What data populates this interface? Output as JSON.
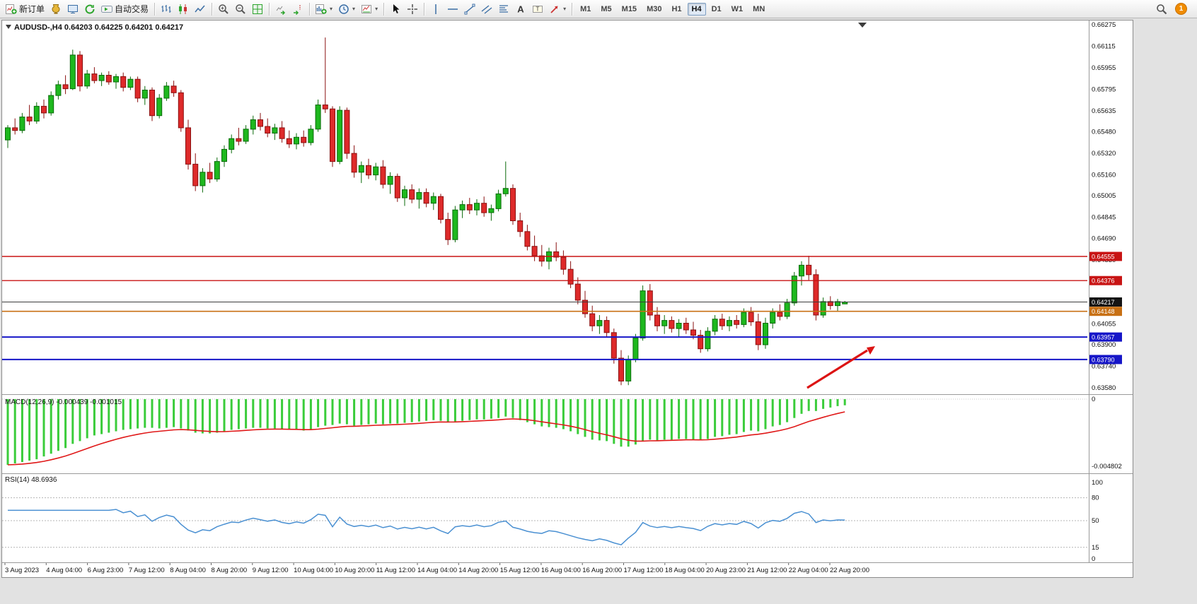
{
  "toolbar": {
    "notification_count": "1",
    "groups": [
      {
        "items": [
          {
            "name": "new-order-button",
            "icon": "new-order-icon",
            "label": "新订单"
          },
          {
            "name": "metaeditor-button",
            "icon": "metaeditor-icon"
          },
          {
            "name": "terminal-button",
            "icon": "terminal-icon"
          },
          {
            "name": "connection-button",
            "icon": "connection-icon"
          },
          {
            "name": "autotrading-button",
            "icon": "autotrading-icon",
            "label": "自动交易"
          }
        ]
      },
      {
        "items": [
          {
            "name": "bar-chart-button",
            "icon": "bar-chart-icon"
          },
          {
            "name": "candlestick-chart-button",
            "icon": "candlestick-chart-icon"
          },
          {
            "name": "line-chart-button",
            "icon": "line-chart-icon"
          }
        ]
      },
      {
        "items": [
          {
            "name": "zoom-in-button",
            "icon": "zoom-in-icon"
          },
          {
            "name": "zoom-out-button",
            "icon": "zoom-out-icon"
          },
          {
            "name": "tile-windows-button",
            "icon": "tile-windows-icon"
          }
        ]
      },
      {
        "items": [
          {
            "name": "auto-scroll-button",
            "icon": "auto-scroll-icon"
          },
          {
            "name": "chart-shift-button",
            "icon": "chart-shift-icon"
          }
        ]
      },
      {
        "items": [
          {
            "name": "indicators-button",
            "icon": "indicators-icon",
            "dropdown": true
          },
          {
            "name": "periods-button",
            "icon": "clock-icon",
            "dropdown": true
          },
          {
            "name": "templates-button",
            "icon": "template-icon",
            "dropdown": true
          }
        ]
      },
      {
        "items": [
          {
            "name": "cursor-button",
            "icon": "cursor-icon"
          },
          {
            "name": "crosshair-button",
            "icon": "crosshair-icon"
          }
        ]
      },
      {
        "items": [
          {
            "name": "vertical-line-button",
            "icon": "vertical-line-icon"
          },
          {
            "name": "horizontal-line-button",
            "icon": "horizontal-line-icon"
          },
          {
            "name": "trendline-button",
            "icon": "trendline-icon"
          },
          {
            "name": "channel-button",
            "icon": "channel-icon"
          },
          {
            "name": "fibonacci-button",
            "icon": "fibonacci-icon"
          },
          {
            "name": "text-button",
            "icon": "text-icon"
          },
          {
            "name": "text-label-button",
            "icon": "text-label-icon"
          },
          {
            "name": "arrows-button",
            "icon": "arrows-icon",
            "dropdown": true
          }
        ]
      }
    ],
    "periods": [
      {
        "label": "M1"
      },
      {
        "label": "M5"
      },
      {
        "label": "M15"
      },
      {
        "label": "M30"
      },
      {
        "label": "H1"
      },
      {
        "label": "H4",
        "active": true
      },
      {
        "label": "D1"
      },
      {
        "label": "W1"
      },
      {
        "label": "MN"
      }
    ]
  },
  "chart": {
    "title": "AUDUSD-,H4 0.64203 0.64225 0.64201 0.64217",
    "symbol": "AUDUSD-",
    "timeframe": "H4",
    "ohlc": {
      "open": "0.64203",
      "high": "0.64225",
      "low": "0.64201",
      "close": "0.64217"
    }
  },
  "indicators": {
    "macd_label": "MACD(12,26,9) -0.000439 -0.001015",
    "rsi_label": "RSI(14) 48.6936"
  },
  "price_axis": {
    "labels": [
      "0.66275",
      "0.66115",
      "0.65955",
      "0.65795",
      "0.65635",
      "0.65480",
      "0.65320",
      "0.65160",
      "0.65005",
      "0.64845",
      "0.64690",
      "0.64530",
      "0.64055",
      "0.63900",
      "0.63740",
      "0.63580"
    ],
    "badges": [
      {
        "value": "0.64555",
        "color": "#C81414"
      },
      {
        "value": "0.64376",
        "color": "#C81414"
      },
      {
        "value": "0.64217",
        "color": "#141414"
      },
      {
        "value": "0.64148",
        "color": "#C87014"
      },
      {
        "value": "0.63957",
        "color": "#1616C8"
      },
      {
        "value": "0.63790",
        "color": "#1616C8"
      }
    ]
  },
  "macd_axis": {
    "labels": [
      "0",
      "-0.004802"
    ]
  },
  "rsi_axis": {
    "labels": [
      "100",
      "80",
      "50",
      "15",
      "0"
    ],
    "levels": [
      80,
      50,
      15
    ]
  },
  "time_axis": {
    "labels": [
      "3 Aug 2023",
      "4 Aug 04:00",
      "6 Aug 23:00",
      "7 Aug 12:00",
      "8 Aug 04:00",
      "8 Aug 20:00",
      "9 Aug 12:00",
      "10 Aug 04:00",
      "10 Aug 20:00",
      "11 Aug 12:00",
      "14 Aug 04:00",
      "14 Aug 20:00",
      "15 Aug 12:00",
      "16 Aug 04:00",
      "16 Aug 20:00",
      "17 Aug 12:00",
      "18 Aug 04:00",
      "20 Aug 23:00",
      "21 Aug 12:00",
      "22 Aug 04:00",
      "22 Aug 20:00"
    ]
  },
  "colors": {
    "bull": "#1EB81E",
    "bull_dark": "#0B6B0B",
    "bear": "#DE2A2A",
    "bear_dark": "#8A1010",
    "macd_histogram": "#3ACC3A",
    "macd_signal": "#E01818",
    "rsi_line": "#4A90D2",
    "red_line": "#C81414",
    "blue_line": "#1616C8",
    "orange_line": "#C87014",
    "current_price": "#3C3C3C",
    "arrow": "#DC1414"
  },
  "chart_data": {
    "type": "candlestick",
    "symbol": "AUDUSD-",
    "timeframe": "H4",
    "ylim": [
      0.6358,
      0.66275
    ],
    "candles": [
      [
        0.6542,
        0.6553,
        0.6536,
        0.6551
      ],
      [
        0.6551,
        0.6558,
        0.6546,
        0.6549
      ],
      [
        0.6549,
        0.6562,
        0.6547,
        0.6559
      ],
      [
        0.6559,
        0.6568,
        0.6553,
        0.6556
      ],
      [
        0.6556,
        0.657,
        0.6554,
        0.6567
      ],
      [
        0.6567,
        0.6572,
        0.6558,
        0.6562
      ],
      [
        0.6562,
        0.6578,
        0.656,
        0.6575
      ],
      [
        0.6575,
        0.6586,
        0.6572,
        0.6583
      ],
      [
        0.6583,
        0.659,
        0.6576,
        0.658
      ],
      [
        0.658,
        0.6609,
        0.6579,
        0.6605
      ],
      [
        0.6605,
        0.6608,
        0.6578,
        0.6582
      ],
      [
        0.6582,
        0.6594,
        0.658,
        0.6591
      ],
      [
        0.6591,
        0.6596,
        0.6584,
        0.6586
      ],
      [
        0.6586,
        0.6592,
        0.6582,
        0.659
      ],
      [
        0.659,
        0.6593,
        0.6583,
        0.6585
      ],
      [
        0.6585,
        0.6591,
        0.658,
        0.6589
      ],
      [
        0.6589,
        0.6592,
        0.6578,
        0.6581
      ],
      [
        0.6581,
        0.6589,
        0.6579,
        0.6587
      ],
      [
        0.6587,
        0.6589,
        0.657,
        0.6573
      ],
      [
        0.6573,
        0.6582,
        0.6568,
        0.6579
      ],
      [
        0.6579,
        0.6581,
        0.6556,
        0.656
      ],
      [
        0.656,
        0.6576,
        0.6558,
        0.6573
      ],
      [
        0.6573,
        0.6585,
        0.6571,
        0.6582
      ],
      [
        0.6582,
        0.6586,
        0.6574,
        0.6577
      ],
      [
        0.6577,
        0.6579,
        0.6548,
        0.6551
      ],
      [
        0.6551,
        0.6557,
        0.652,
        0.6524
      ],
      [
        0.6524,
        0.6532,
        0.6504,
        0.6508
      ],
      [
        0.6508,
        0.6521,
        0.6503,
        0.6518
      ],
      [
        0.6518,
        0.6525,
        0.651,
        0.6513
      ],
      [
        0.6513,
        0.6529,
        0.6511,
        0.6526
      ],
      [
        0.6526,
        0.6538,
        0.6522,
        0.6535
      ],
      [
        0.6535,
        0.6546,
        0.6532,
        0.6543
      ],
      [
        0.6543,
        0.6551,
        0.6538,
        0.6541
      ],
      [
        0.6541,
        0.6553,
        0.6539,
        0.655
      ],
      [
        0.655,
        0.656,
        0.6546,
        0.6557
      ],
      [
        0.6557,
        0.6562,
        0.6549,
        0.6552
      ],
      [
        0.6552,
        0.6558,
        0.6544,
        0.6547
      ],
      [
        0.6547,
        0.6554,
        0.6542,
        0.6551
      ],
      [
        0.6551,
        0.6556,
        0.654,
        0.6543
      ],
      [
        0.6543,
        0.6549,
        0.6536,
        0.6539
      ],
      [
        0.6539,
        0.6547,
        0.6535,
        0.6544
      ],
      [
        0.6544,
        0.6549,
        0.6537,
        0.654
      ],
      [
        0.654,
        0.6553,
        0.6538,
        0.655
      ],
      [
        0.655,
        0.6572,
        0.6548,
        0.6568
      ],
      [
        0.6568,
        0.6618,
        0.6562,
        0.6565
      ],
      [
        0.6565,
        0.6567,
        0.6522,
        0.6526
      ],
      [
        0.6526,
        0.6567,
        0.6524,
        0.6564
      ],
      [
        0.6564,
        0.6566,
        0.6528,
        0.6532
      ],
      [
        0.6532,
        0.6538,
        0.6514,
        0.6518
      ],
      [
        0.6518,
        0.6526,
        0.651,
        0.6523
      ],
      [
        0.6523,
        0.6528,
        0.6513,
        0.6516
      ],
      [
        0.6516,
        0.6525,
        0.6512,
        0.6522
      ],
      [
        0.6522,
        0.6527,
        0.6506,
        0.6509
      ],
      [
        0.6509,
        0.6518,
        0.6502,
        0.6515
      ],
      [
        0.6515,
        0.6517,
        0.6496,
        0.6499
      ],
      [
        0.6499,
        0.6508,
        0.6493,
        0.6505
      ],
      [
        0.6505,
        0.6509,
        0.6495,
        0.6498
      ],
      [
        0.6498,
        0.6506,
        0.6491,
        0.6503
      ],
      [
        0.6503,
        0.6506,
        0.6492,
        0.6495
      ],
      [
        0.6495,
        0.6503,
        0.649,
        0.65
      ],
      [
        0.65,
        0.6502,
        0.648,
        0.6483
      ],
      [
        0.6483,
        0.6488,
        0.6464,
        0.6468
      ],
      [
        0.6468,
        0.6493,
        0.6466,
        0.649
      ],
      [
        0.649,
        0.6497,
        0.6484,
        0.6494
      ],
      [
        0.6494,
        0.6499,
        0.6487,
        0.649
      ],
      [
        0.649,
        0.6498,
        0.6486,
        0.6495
      ],
      [
        0.6495,
        0.65,
        0.6485,
        0.6488
      ],
      [
        0.6488,
        0.6494,
        0.6482,
        0.6491
      ],
      [
        0.6491,
        0.6505,
        0.6489,
        0.6502
      ],
      [
        0.6502,
        0.6526,
        0.65,
        0.6506
      ],
      [
        0.6506,
        0.6509,
        0.6479,
        0.6482
      ],
      [
        0.6482,
        0.6488,
        0.647,
        0.6474
      ],
      [
        0.6474,
        0.6479,
        0.646,
        0.6463
      ],
      [
        0.6463,
        0.6471,
        0.6452,
        0.6456
      ],
      [
        0.6456,
        0.6464,
        0.6448,
        0.6452
      ],
      [
        0.6452,
        0.6462,
        0.6446,
        0.6459
      ],
      [
        0.6459,
        0.6466,
        0.6452,
        0.6455
      ],
      [
        0.6455,
        0.646,
        0.6442,
        0.6446
      ],
      [
        0.6446,
        0.6452,
        0.6432,
        0.6435
      ],
      [
        0.6435,
        0.644,
        0.642,
        0.6423
      ],
      [
        0.6423,
        0.643,
        0.641,
        0.6413
      ],
      [
        0.6413,
        0.6419,
        0.64,
        0.6404
      ],
      [
        0.6404,
        0.6412,
        0.6398,
        0.6408
      ],
      [
        0.6408,
        0.6411,
        0.6396,
        0.6399
      ],
      [
        0.6399,
        0.6402,
        0.6376,
        0.638
      ],
      [
        0.638,
        0.6386,
        0.636,
        0.6363
      ],
      [
        0.6363,
        0.6382,
        0.636,
        0.6379
      ],
      [
        0.6379,
        0.6398,
        0.6377,
        0.6395
      ],
      [
        0.6395,
        0.6434,
        0.6393,
        0.643
      ],
      [
        0.643,
        0.6435,
        0.6408,
        0.6412
      ],
      [
        0.6412,
        0.6418,
        0.64,
        0.6404
      ],
      [
        0.6404,
        0.6412,
        0.6398,
        0.6408
      ],
      [
        0.6408,
        0.6411,
        0.6399,
        0.6402
      ],
      [
        0.6402,
        0.6409,
        0.6396,
        0.6406
      ],
      [
        0.6406,
        0.641,
        0.6398,
        0.6401
      ],
      [
        0.6401,
        0.6407,
        0.6394,
        0.6397
      ],
      [
        0.6397,
        0.6401,
        0.6384,
        0.6387
      ],
      [
        0.6387,
        0.6403,
        0.6385,
        0.64
      ],
      [
        0.64,
        0.6412,
        0.6397,
        0.6409
      ],
      [
        0.6409,
        0.6413,
        0.6401,
        0.6404
      ],
      [
        0.6404,
        0.6411,
        0.64,
        0.6408
      ],
      [
        0.6408,
        0.6412,
        0.6402,
        0.6405
      ],
      [
        0.6405,
        0.6417,
        0.6403,
        0.6414
      ],
      [
        0.6414,
        0.6418,
        0.6404,
        0.6407
      ],
      [
        0.6407,
        0.6413,
        0.6386,
        0.639
      ],
      [
        0.639,
        0.641,
        0.6387,
        0.6406
      ],
      [
        0.6406,
        0.6417,
        0.6402,
        0.6414
      ],
      [
        0.6414,
        0.642,
        0.6408,
        0.6411
      ],
      [
        0.6411,
        0.6424,
        0.6409,
        0.6421
      ],
      [
        0.6421,
        0.6444,
        0.6419,
        0.6441
      ],
      [
        0.6441,
        0.6452,
        0.6434,
        0.6449
      ],
      [
        0.6449,
        0.6456,
        0.6438,
        0.6442
      ],
      [
        0.6442,
        0.6446,
        0.6408,
        0.6412
      ],
      [
        0.6412,
        0.6425,
        0.641,
        0.6422
      ],
      [
        0.6422,
        0.6426,
        0.6416,
        0.6419
      ],
      [
        0.6419,
        0.6424,
        0.6415,
        0.6422
      ],
      [
        0.64203,
        0.64225,
        0.64201,
        0.64217
      ]
    ],
    "overlays": {
      "hlines": [
        {
          "price": 0.64555,
          "color": "#C81414",
          "width": 1.4
        },
        {
          "price": 0.64376,
          "color": "#C81414",
          "width": 1.4
        },
        {
          "price": 0.64148,
          "color": "#C87014",
          "width": 1.6
        },
        {
          "price": 0.63957,
          "color": "#1616C8",
          "width": 2
        },
        {
          "price": 0.6379,
          "color": "#1616C8",
          "width": 2
        }
      ],
      "current_price": 0.64217,
      "annotation": {
        "type": "arrow",
        "direction": "up-right",
        "color": "#DC1414"
      }
    },
    "indicators": {
      "macd": {
        "params": [
          12,
          26,
          9
        ],
        "current": "-0.000439",
        "signal_current": "-0.001015",
        "scale_min": -0.004802,
        "values": [
          -0.0047,
          -0.0046,
          -0.0045,
          -0.0044,
          -0.0043,
          -0.0041,
          -0.0039,
          -0.0037,
          -0.0035,
          -0.0032,
          -0.003,
          -0.0028,
          -0.0026,
          -0.0025,
          -0.0024,
          -0.0023,
          -0.0022,
          -0.00215,
          -0.0021,
          -0.00205,
          -0.00205,
          -0.0021,
          -0.00205,
          -0.002,
          -0.0021,
          -0.00225,
          -0.0024,
          -0.00245,
          -0.00245,
          -0.0024,
          -0.0023,
          -0.0022,
          -0.00215,
          -0.0021,
          -0.00205,
          -0.00205,
          -0.0021,
          -0.0021,
          -0.00215,
          -0.0022,
          -0.0022,
          -0.00225,
          -0.0022,
          -0.002,
          -0.0019,
          -0.00185,
          -0.00175,
          -0.0018,
          -0.0019,
          -0.00185,
          -0.0018,
          -0.00175,
          -0.0018,
          -0.00175,
          -0.00175,
          -0.0017,
          -0.00165,
          -0.0016,
          -0.00155,
          -0.0015,
          -0.00155,
          -0.00165,
          -0.0016,
          -0.00155,
          -0.0015,
          -0.00145,
          -0.00145,
          -0.0014,
          -0.00135,
          -0.00125,
          -0.00135,
          -0.0015,
          -0.00165,
          -0.0018,
          -0.00195,
          -0.002,
          -0.00205,
          -0.00215,
          -0.0023,
          -0.0025,
          -0.0027,
          -0.0029,
          -0.00295,
          -0.003,
          -0.0032,
          -0.0034,
          -0.0034,
          -0.00325,
          -0.003,
          -0.0029,
          -0.00295,
          -0.0029,
          -0.0029,
          -0.00285,
          -0.00285,
          -0.0029,
          -0.00295,
          -0.00285,
          -0.0027,
          -0.00265,
          -0.00255,
          -0.0025,
          -0.00235,
          -0.00225,
          -0.0023,
          -0.00215,
          -0.00195,
          -0.00185,
          -0.00165,
          -0.00135,
          -0.00105,
          -0.00085,
          -0.00085,
          -0.0007,
          -0.0006,
          -0.0005,
          -0.000439
        ]
      },
      "rsi": {
        "period": 14,
        "current": "48.6936"
      }
    }
  }
}
